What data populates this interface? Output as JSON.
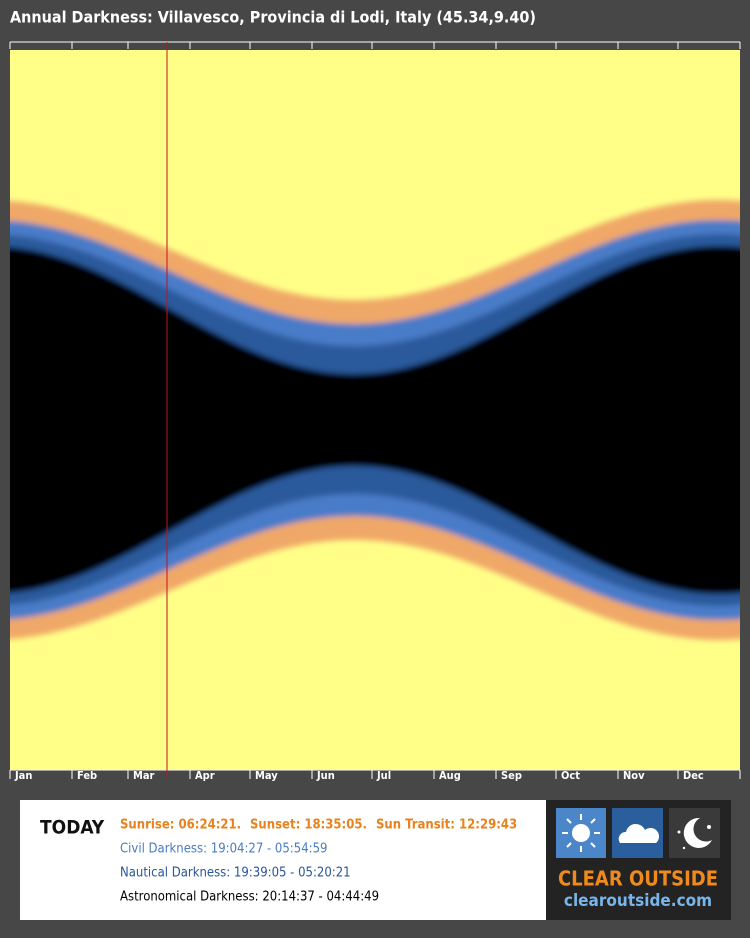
{
  "header": {
    "title": "Annual Darkness: Villavesco, Provincia di Lodi, Italy (45.34,9.40)"
  },
  "months": [
    "Jan",
    "Feb",
    "Mar",
    "Apr",
    "May",
    "Jun",
    "Jul",
    "Aug",
    "Sep",
    "Oct",
    "Nov",
    "Dec"
  ],
  "today": {
    "label": "TODAY",
    "sunrise": "Sunrise: 06:24:21.",
    "sunset": "Sunset: 18:35:05.",
    "sun_transit": "Sun Transit: 12:29:43",
    "civil": "Civil Darkness: 19:04:27 - 05:54:59",
    "nautical": "Nautical Darkness: 19:39:05 - 05:20:21",
    "astronomical": "Astronomical Darkness: 20:14:37 - 04:44:49"
  },
  "logo": {
    "name": "CLEAR OUTSIDE",
    "url": "clearoutside.com"
  }
}
